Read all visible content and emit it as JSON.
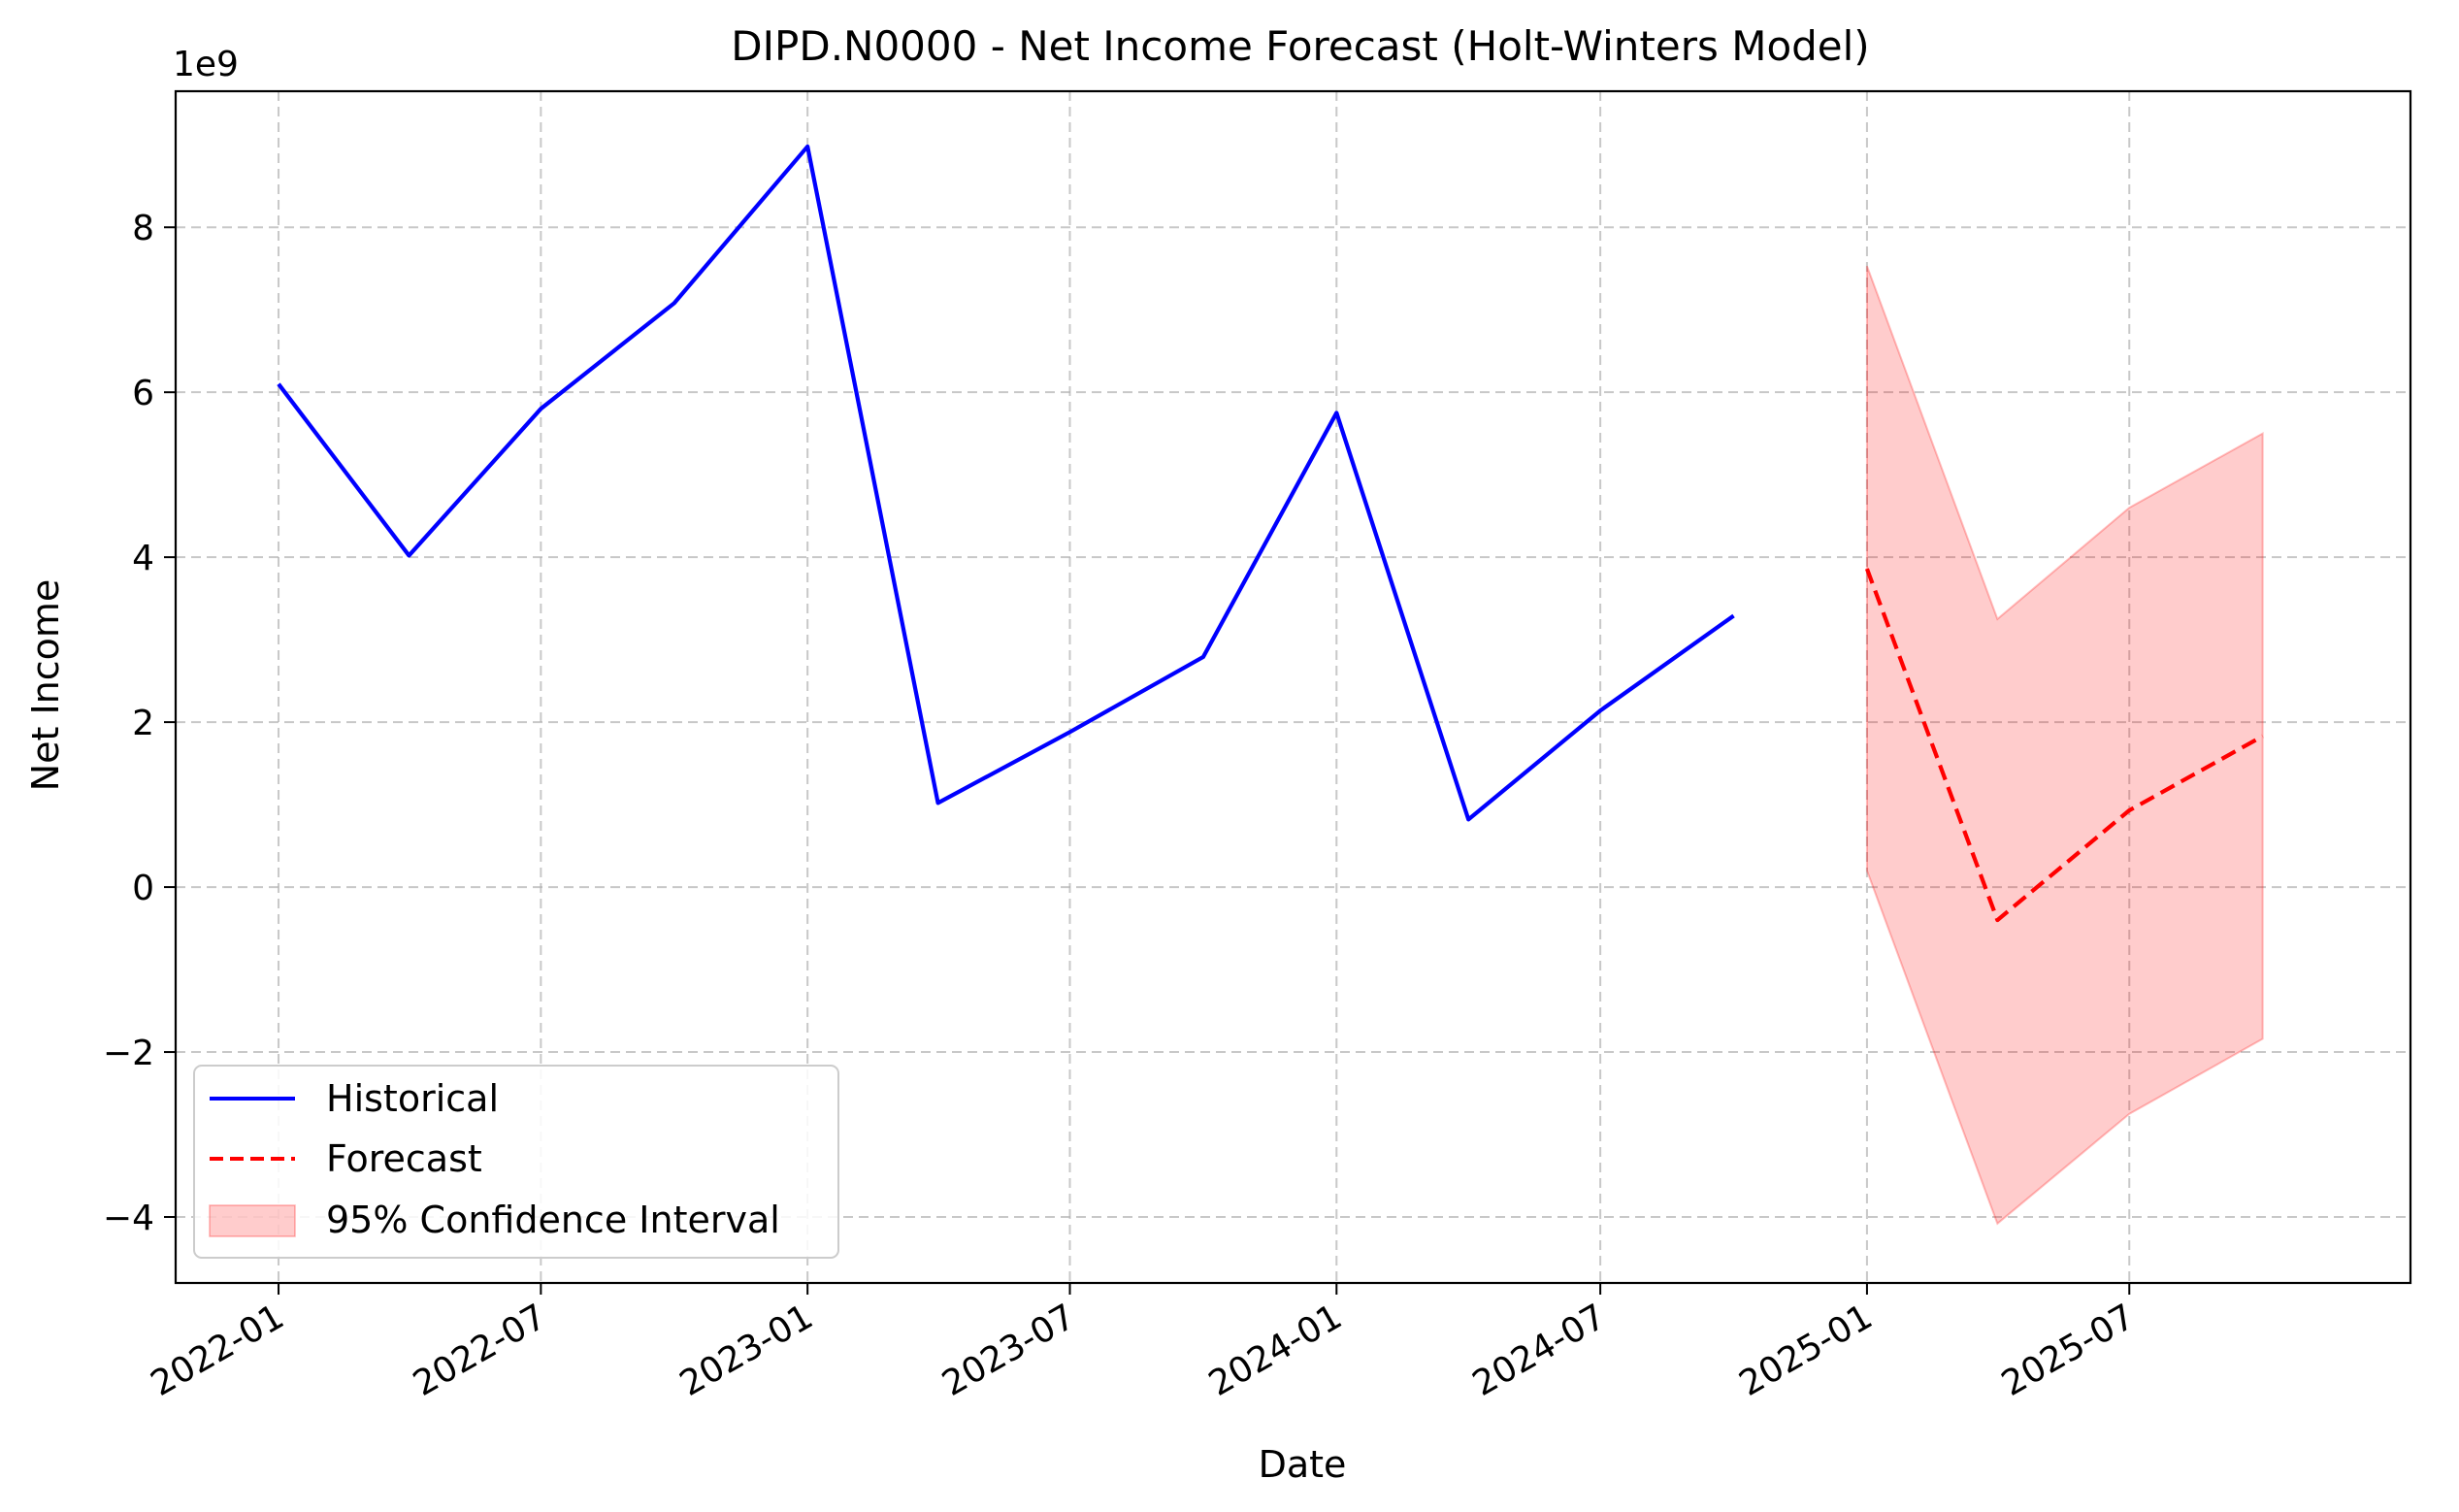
{
  "chart_data": {
    "type": "line",
    "title": "DIPD.N0000 - Net Income Forecast (Holt-Winters Model)",
    "xlabel": "Date",
    "ylabel": "Net Income",
    "y_offset_label": "1e9",
    "y_scale": 1000000000,
    "xlim": [
      "2021-10-22",
      "2026-01-11"
    ],
    "ylim": [
      -4.8,
      9.65
    ],
    "x_ticks": [
      "2022-01-01",
      "2022-07-01",
      "2023-01-01",
      "2023-07-01",
      "2024-01-01",
      "2024-07-01",
      "2025-01-01",
      "2025-07-01"
    ],
    "x_tick_labels": [
      "2022-01",
      "2022-07",
      "2023-01",
      "2023-07",
      "2024-01",
      "2024-07",
      "2025-01",
      "2025-07"
    ],
    "y_ticks": [
      -4,
      -2,
      0,
      2,
      4,
      6,
      8
    ],
    "y_tick_labels": [
      "−4",
      "−2",
      "0",
      "2",
      "4",
      "6",
      "8"
    ],
    "grid": true,
    "legend_position": "lower-left",
    "series": [
      {
        "name": "Historical",
        "color": "#0000ff",
        "style": "solid",
        "x": [
          "2022-01-01",
          "2022-04-01",
          "2022-07-01",
          "2022-10-01",
          "2023-01-01",
          "2023-04-01",
          "2023-07-01",
          "2023-10-01",
          "2024-01-01",
          "2024-04-01",
          "2024-07-01",
          "2024-10-01"
        ],
        "y": [
          6.1,
          4.02,
          5.8,
          7.08,
          8.98,
          1.02,
          1.88,
          2.79,
          5.75,
          0.82,
          2.14,
          3.29
        ]
      },
      {
        "name": "Forecast",
        "color": "#ff0000",
        "style": "dashed",
        "x": [
          "2025-01-01",
          "2025-04-01",
          "2025-07-01",
          "2025-10-01"
        ],
        "y": [
          3.86,
          -0.4,
          0.93,
          1.83
        ]
      }
    ],
    "confidence_interval": {
      "name": "95% Confidence Interval",
      "color": "#ff9999",
      "x": [
        "2025-01-01",
        "2025-04-01",
        "2025-07-01",
        "2025-10-01"
      ],
      "lower": [
        0.2,
        -4.08,
        -2.75,
        -1.84
      ],
      "upper": [
        7.53,
        3.25,
        4.6,
        5.5
      ]
    }
  }
}
